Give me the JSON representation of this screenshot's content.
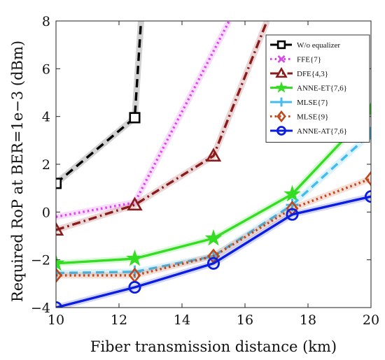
{
  "chart_data": {
    "type": "line",
    "title": "",
    "xlabel": "Fiber transmission distance (km)",
    "ylabel": "Required RoP at BER=1e−3 (dBm)",
    "xlim": [
      10,
      20
    ],
    "ylim": [
      -4,
      8
    ],
    "xticks": [
      10,
      12,
      14,
      16,
      18,
      20
    ],
    "yticks": [
      -4,
      -2,
      0,
      2,
      4,
      6,
      8
    ],
    "grid": false,
    "legend_position": "top-right",
    "series": [
      {
        "name": "W/o equalizer",
        "color": "#000000",
        "dash": "dash",
        "marker": "square",
        "x": [
          10,
          12.5,
          12.7
        ],
        "y": [
          1.2,
          3.95,
          8
        ],
        "marker_count": 2
      },
      {
        "name": "FFE{7}",
        "color": "#dd44ee",
        "dash": "dot",
        "marker": "x",
        "x": [
          10,
          12.5,
          15.5
        ],
        "y": [
          -0.2,
          0.4,
          8
        ],
        "marker_count": 0
      },
      {
        "name": "DFE{4,3}",
        "color": "#8b1a1a",
        "dash": "dashdot",
        "marker": "triangle",
        "x": [
          10,
          12.5,
          15,
          16.7
        ],
        "y": [
          -0.75,
          0.3,
          2.35,
          8
        ],
        "marker_count": 3
      },
      {
        "name": "ANNE-ET{7,6}",
        "color": "#33dd22",
        "dash": "solid",
        "marker": "star",
        "x": [
          10,
          12.5,
          15,
          17.5,
          20
        ],
        "y": [
          -2.15,
          -1.95,
          -1.1,
          0.75,
          4.25
        ]
      },
      {
        "name": "MLSE{7}",
        "color": "#44bbee",
        "dash": "dash",
        "marker": "plus",
        "x": [
          10,
          12.5,
          15,
          17.5,
          20
        ],
        "y": [
          -2.55,
          -2.5,
          -1.85,
          0.3,
          3.3
        ]
      },
      {
        "name": "MLSE{9}",
        "color": "#c0471a",
        "dash": "dot",
        "marker": "diamond",
        "x": [
          10,
          12.5,
          15,
          17.5,
          20
        ],
        "y": [
          -2.65,
          -2.65,
          -1.85,
          0.15,
          1.4
        ]
      },
      {
        "name": "ANNE-AT{7,6}",
        "color": "#0a1de0",
        "dash": "solid",
        "marker": "circle",
        "x": [
          10,
          12.5,
          15,
          17.5,
          20
        ],
        "y": [
          -4.0,
          -3.15,
          -2.15,
          -0.1,
          0.65
        ]
      }
    ]
  }
}
